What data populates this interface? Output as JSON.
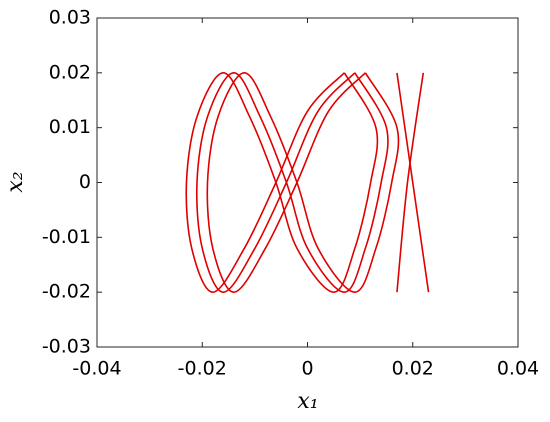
{
  "chart_data": {
    "type": "line",
    "xlabel": "x₁",
    "ylabel": "x₂",
    "xlim": [
      -0.04,
      0.04
    ],
    "xticks": [
      -0.04,
      -0.02,
      0,
      0.02,
      0.04
    ],
    "ylim": [
      -0.03,
      0.03
    ],
    "yticks": [
      -0.03,
      -0.02,
      -0.01,
      0,
      0.01,
      0.02,
      0.03
    ],
    "grid": false,
    "series": [
      {
        "color": "#e00000",
        "x": [
          0.007,
          0.013,
          0.012,
          0.009,
          0.005,
          -0.002,
          -0.006,
          -0.011,
          -0.016,
          -0.021,
          -0.023,
          -0.022,
          -0.018,
          -0.012,
          -0.006,
          0,
          0.007
        ],
        "values": [
          0.02,
          0.01,
          0,
          -0.012,
          -0.02,
          -0.012,
          0,
          0.012,
          0.02,
          0.012,
          0,
          -0.012,
          -0.02,
          -0.012,
          0,
          0.013,
          0.02
        ]
      },
      {
        "color": "#e00000",
        "x": [
          0.009,
          0.015,
          0.014,
          0.011,
          0.007,
          0,
          -0.004,
          -0.009,
          -0.014,
          -0.019,
          -0.021,
          -0.02,
          -0.016,
          -0.01,
          -0.004,
          0.002,
          0.009
        ],
        "values": [
          0.02,
          0.01,
          0,
          -0.012,
          -0.02,
          -0.012,
          0,
          0.012,
          0.02,
          0.012,
          0,
          -0.012,
          -0.02,
          -0.012,
          0,
          0.013,
          0.02
        ]
      },
      {
        "color": "#e00000",
        "x": [
          0.011,
          0.017,
          0.016,
          0.013,
          0.009,
          0.002,
          -0.002,
          -0.007,
          -0.012,
          -0.017,
          -0.019,
          -0.018,
          -0.014,
          -0.008,
          -0.002,
          0.004,
          0.011
        ],
        "values": [
          0.02,
          0.01,
          0,
          -0.012,
          -0.02,
          -0.012,
          0,
          0.012,
          0.02,
          0.012,
          0,
          -0.012,
          -0.02,
          -0.012,
          0,
          0.013,
          0.02
        ]
      },
      {
        "color": "#e00000",
        "x": [
          0.017,
          0.019,
          0.022
        ],
        "values": [
          -0.02,
          0,
          0.02
        ]
      },
      {
        "color": "#e00000",
        "x": [
          0.023,
          0.02,
          0.017
        ],
        "values": [
          -0.02,
          0,
          0.02
        ]
      }
    ]
  }
}
